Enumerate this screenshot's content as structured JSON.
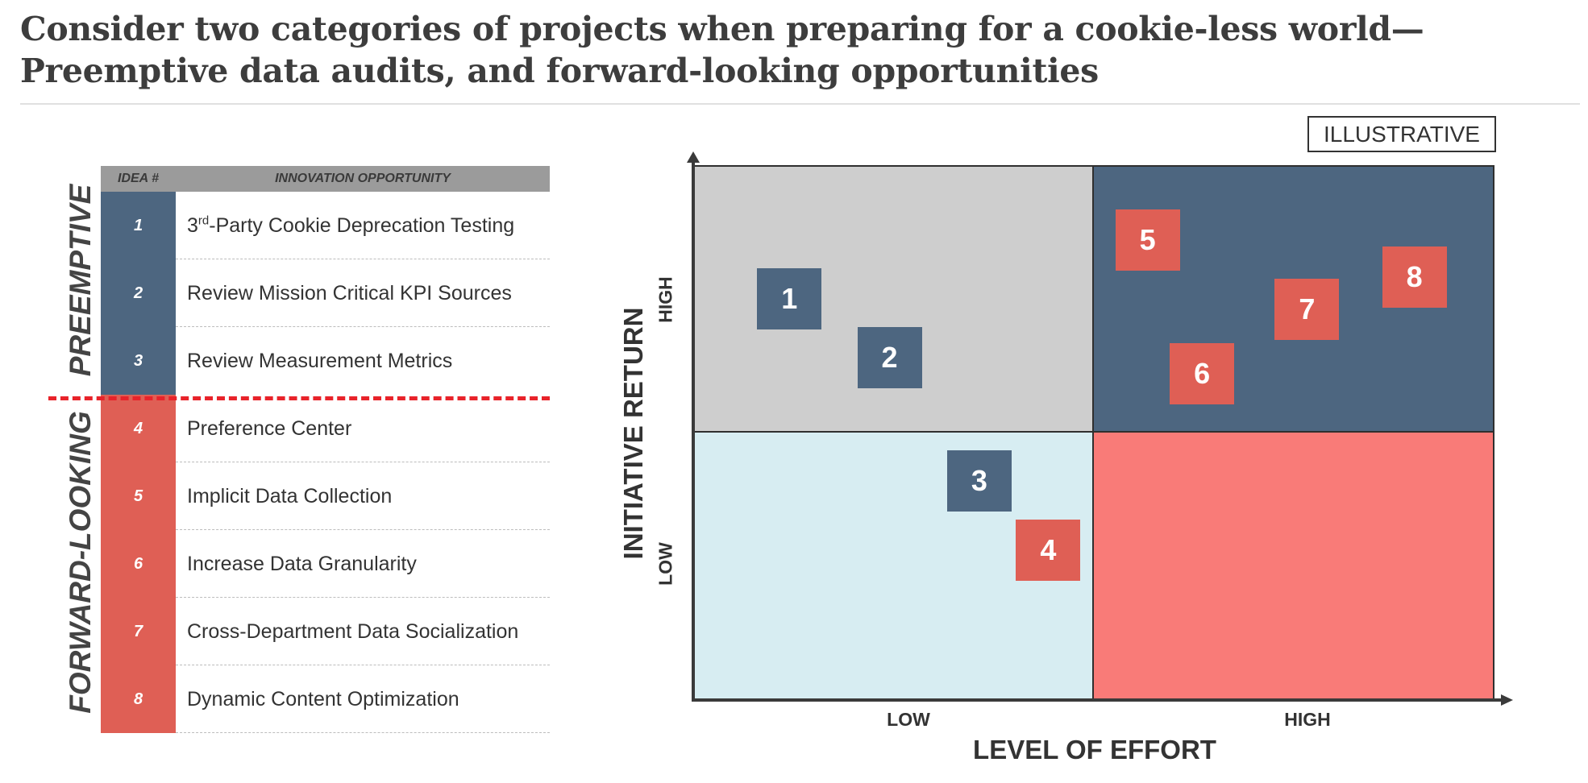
{
  "title": "Consider two categories of projects when preparing for a cookie-less world—Preemptive data audits, and forward-looking opportunities",
  "table": {
    "header_idea": "IDEA #",
    "header_opportunity": "INNOVATION OPPORTUNITY",
    "group_preemptive": "PREEMPTIVE",
    "group_forward": "FORWARD-LOOKING",
    "rows": [
      {
        "num": "1",
        "label_prefix": "3",
        "label_sup": "rd",
        "label_rest": "-Party Cookie Deprecation Testing",
        "group": "preemptive"
      },
      {
        "num": "2",
        "label": "Review Mission Critical KPI Sources",
        "group": "preemptive"
      },
      {
        "num": "3",
        "label": "Review Measurement Metrics",
        "group": "preemptive"
      },
      {
        "num": "4",
        "label": "Preference Center",
        "group": "forward"
      },
      {
        "num": "5",
        "label": "Implicit Data Collection",
        "group": "forward"
      },
      {
        "num": "6",
        "label": "Increase Data Granularity",
        "group": "forward"
      },
      {
        "num": "7",
        "label": "Cross-Department Data Socialization",
        "group": "forward"
      },
      {
        "num": "8",
        "label": "Dynamic Content Optimization",
        "group": "forward"
      }
    ]
  },
  "matrix": {
    "tag": "ILLUSTRATIVE",
    "y_axis_title": "INITIATIVE RETURN",
    "x_axis_title": "LEVEL OF EFFORT",
    "y_ticks": [
      "HIGH",
      "LOW"
    ],
    "x_ticks": [
      "LOW",
      "HIGH"
    ],
    "colors": {
      "preemptive": "#4d6680",
      "forward": "#df5f55",
      "high_return_low_effort": "#cecece",
      "high_return_high_effort": "#4d6680",
      "low_return_low_effort": "#d7edf2",
      "low_return_high_effort": "#f97b78"
    },
    "markers": [
      {
        "num": "1",
        "group": "preemptive",
        "effort": 0.12,
        "return": 0.75
      },
      {
        "num": "2",
        "group": "preemptive",
        "effort": 0.245,
        "return": 0.64
      },
      {
        "num": "3",
        "group": "preemptive",
        "effort": 0.357,
        "return": 0.41
      },
      {
        "num": "4",
        "group": "forward",
        "effort": 0.443,
        "return": 0.28
      },
      {
        "num": "5",
        "group": "forward",
        "effort": 0.567,
        "return": 0.86
      },
      {
        "num": "6",
        "group": "forward",
        "effort": 0.635,
        "return": 0.61
      },
      {
        "num": "7",
        "group": "forward",
        "effort": 0.766,
        "return": 0.73
      },
      {
        "num": "8",
        "group": "forward",
        "effort": 0.9,
        "return": 0.79
      }
    ]
  }
}
